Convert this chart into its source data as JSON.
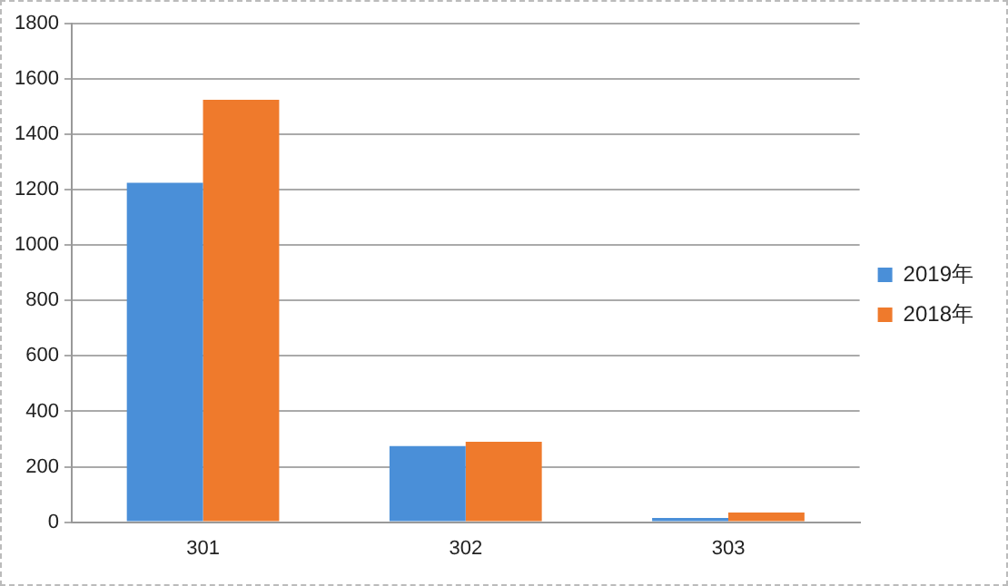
{
  "chart_data": {
    "type": "bar",
    "categories": [
      "301",
      "302",
      "303"
    ],
    "series": [
      {
        "name": "2019年",
        "color": "#4a8fd8",
        "values": [
          1225,
          275,
          15
        ]
      },
      {
        "name": "2018年",
        "color": "#ef7a2c",
        "values": [
          1525,
          290,
          35
        ]
      }
    ],
    "ylim": [
      0,
      1800
    ],
    "yticks": [
      0,
      200,
      400,
      600,
      800,
      1000,
      1200,
      1400,
      1600,
      1800
    ],
    "grid": "y",
    "legend": "right"
  }
}
